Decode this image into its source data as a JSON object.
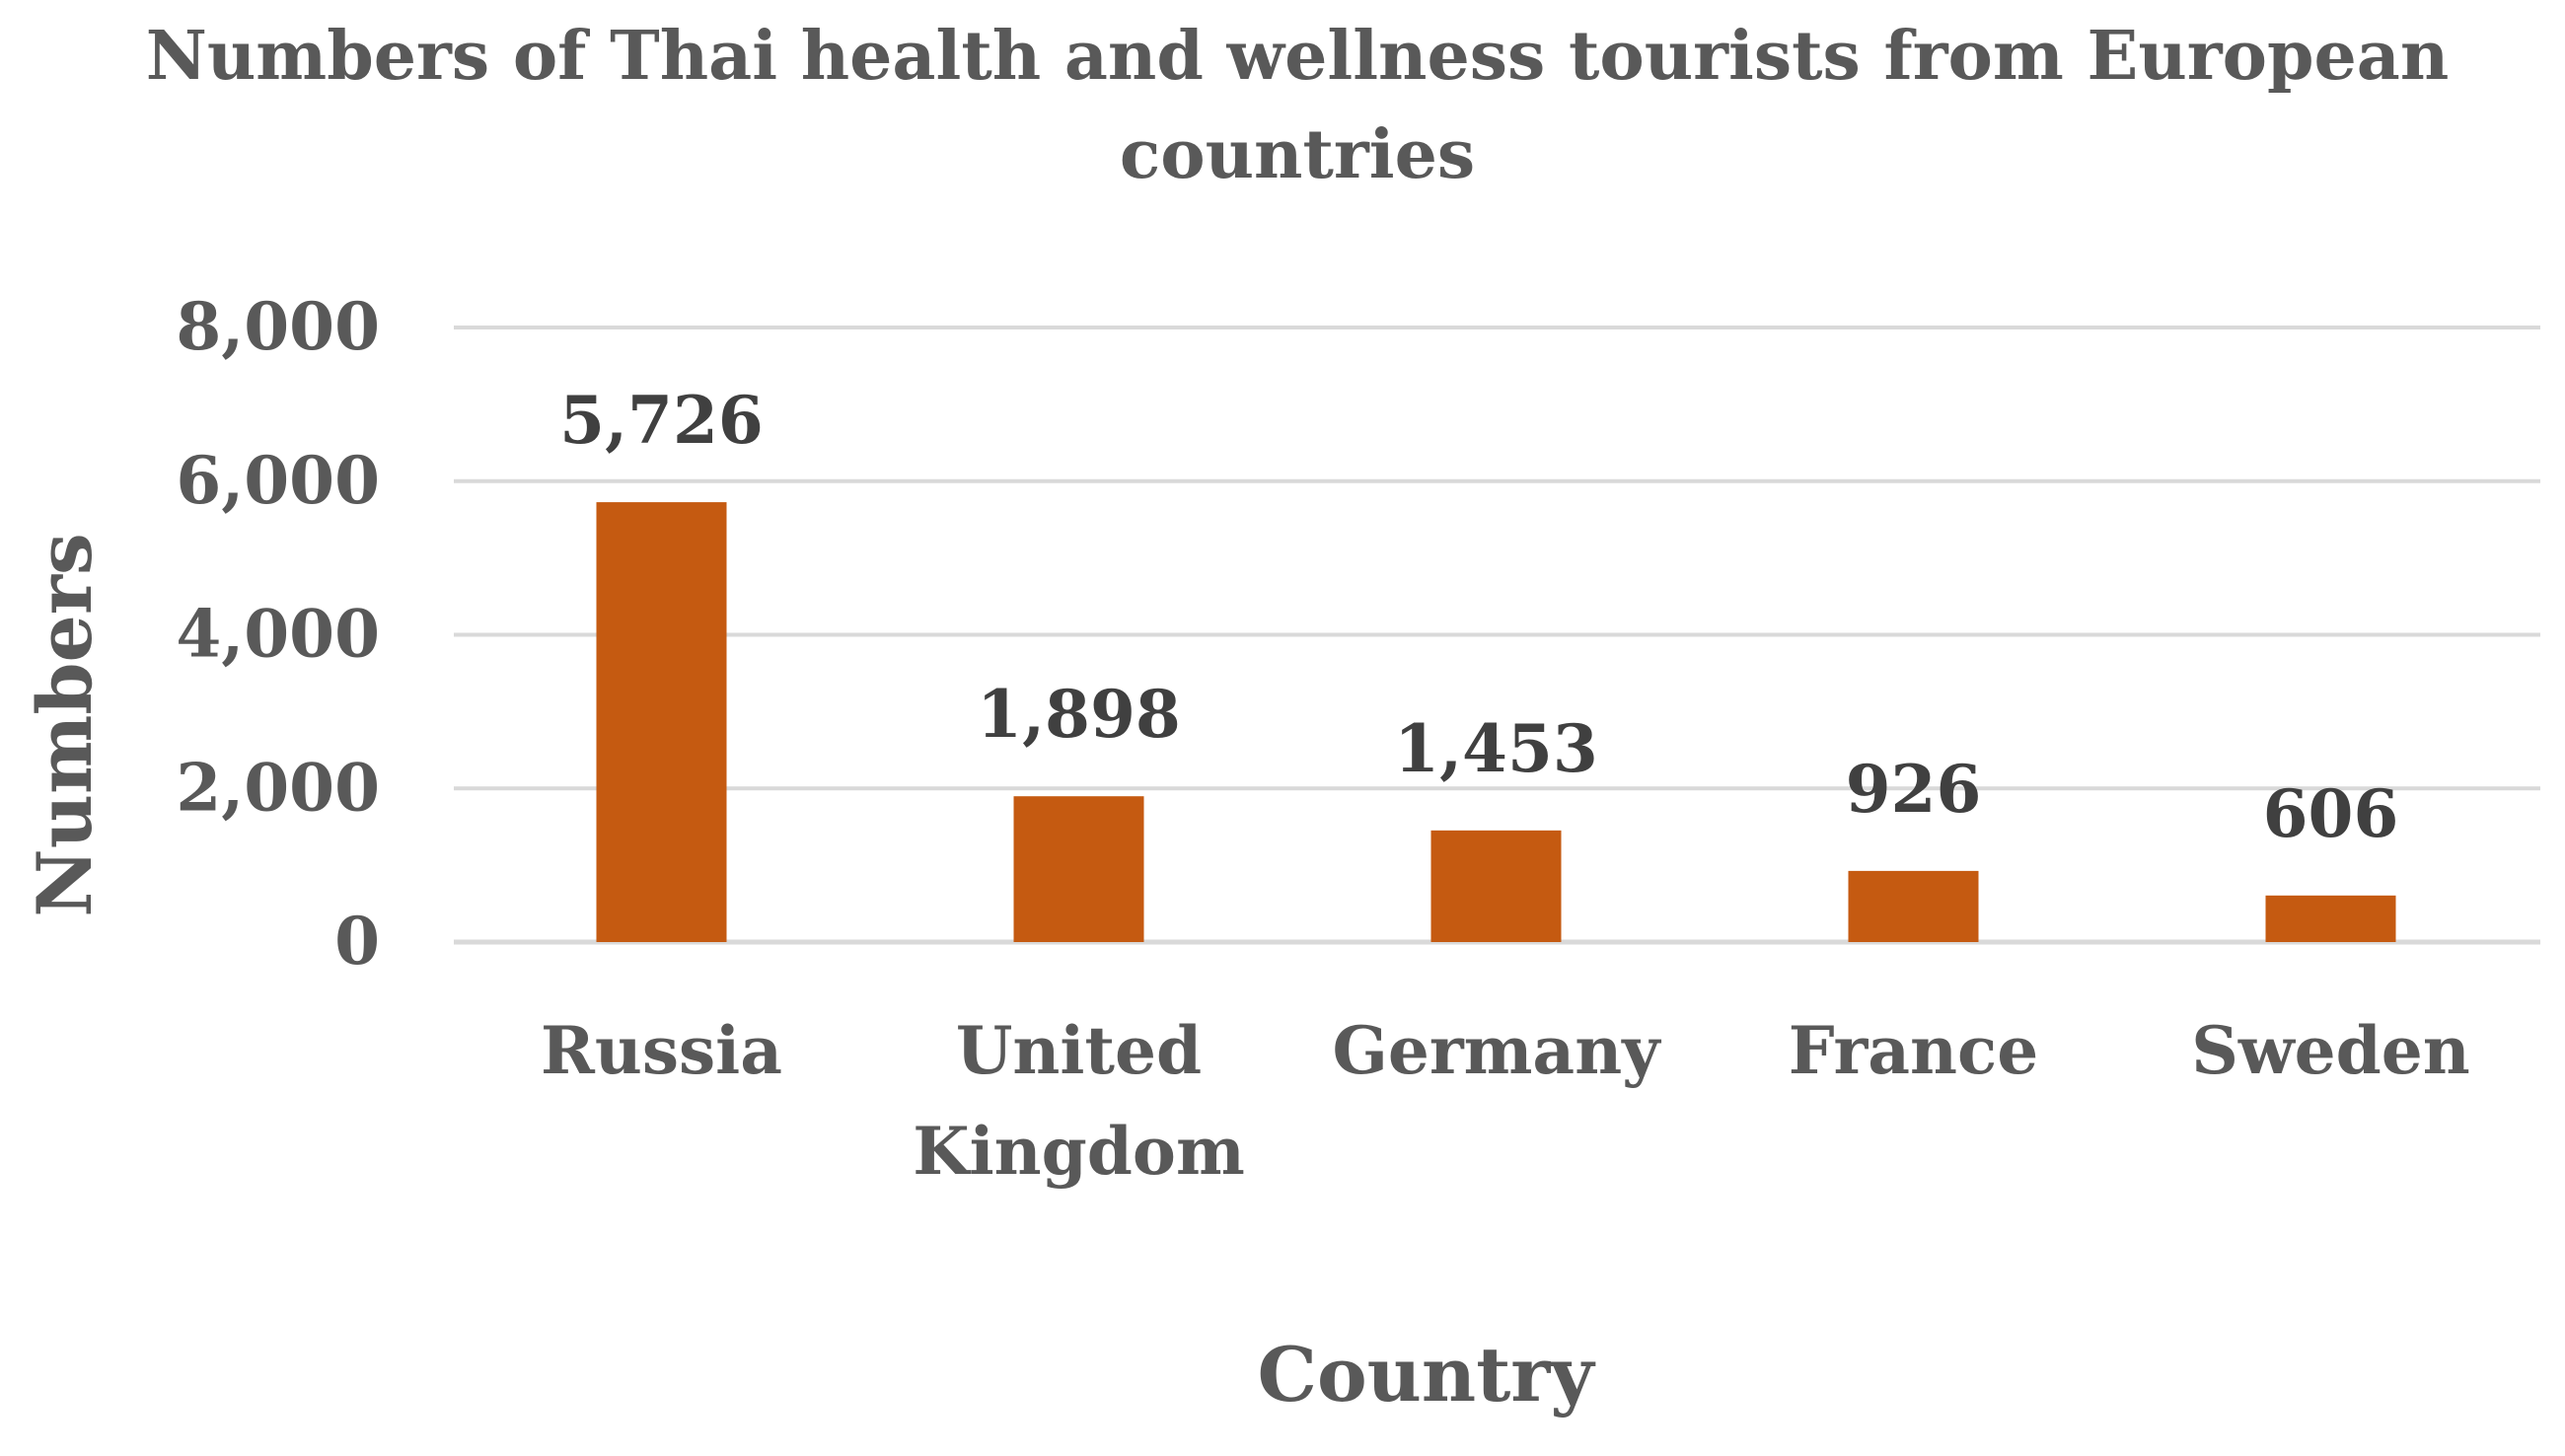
{
  "chart_data": {
    "type": "bar",
    "title_lines": [
      "Numbers of Thai health and wellness tourists from European",
      "countries"
    ],
    "categories": [
      [
        "Russia"
      ],
      [
        "United",
        "Kingdom"
      ],
      [
        "Germany"
      ],
      [
        "France"
      ],
      [
        "Sweden"
      ]
    ],
    "values": [
      5726,
      1898,
      1453,
      926,
      606
    ],
    "data_labels": [
      "5,726",
      "1,898",
      "1,453",
      "926",
      "606"
    ],
    "xlabel": "Country",
    "ylabel": "Numbers",
    "ylim": [
      0,
      8000
    ],
    "yticks": [
      0,
      2000,
      4000,
      6000,
      8000
    ],
    "ytick_labels": [
      "0",
      "2,000",
      "4,000",
      "6,000",
      "8,000"
    ],
    "grid": true,
    "legend": "none",
    "bar_color": "#C55A11",
    "grid_color": "#D9D9D9"
  }
}
